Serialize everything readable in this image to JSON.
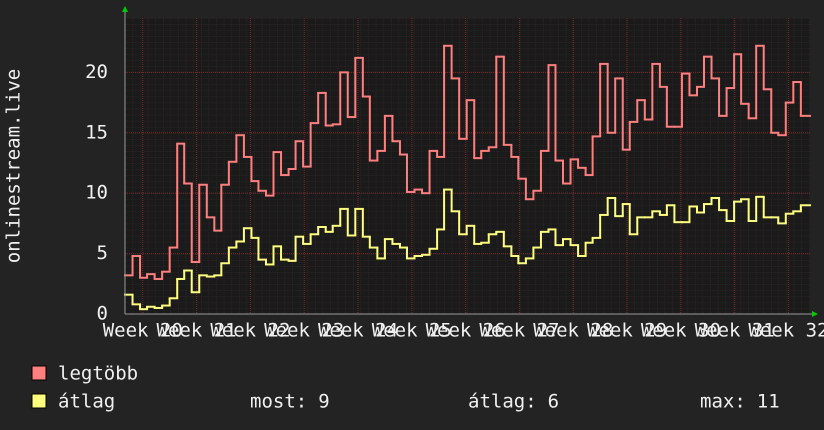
{
  "chart_data": {
    "type": "step",
    "y_label": "onlinestream.live",
    "xlim": [
      19.67,
      32.4
    ],
    "xticks": [
      {
        "value": 20,
        "label": "Week 20"
      },
      {
        "value": 21,
        "label": "Week 21"
      },
      {
        "value": 22,
        "label": "Week 22"
      },
      {
        "value": 23,
        "label": "Week 23"
      },
      {
        "value": 24,
        "label": "Week 24"
      },
      {
        "value": 25,
        "label": "Week 25"
      },
      {
        "value": 26,
        "label": "Week 26"
      },
      {
        "value": 27,
        "label": "Week 27"
      },
      {
        "value": 28,
        "label": "Week 28"
      },
      {
        "value": 29,
        "label": "Week 29"
      },
      {
        "value": 30,
        "label": "Week 30"
      },
      {
        "value": 31,
        "label": "Week 31"
      },
      {
        "value": 32,
        "label": "Week 32"
      }
    ],
    "ylim": [
      0,
      24.5
    ],
    "yticks": [
      0,
      5,
      10,
      15,
      20
    ],
    "grid": true,
    "x": [
      19.67,
      19.81,
      19.95,
      20.08,
      20.22,
      20.36,
      20.5,
      20.64,
      20.77,
      20.91,
      21.05,
      21.19,
      21.33,
      21.46,
      21.6,
      21.74,
      21.88,
      22.02,
      22.15,
      22.29,
      22.43,
      22.57,
      22.71,
      22.84,
      22.98,
      23.12,
      23.26,
      23.4,
      23.53,
      23.67,
      23.81,
      23.95,
      24.09,
      24.22,
      24.36,
      24.5,
      24.64,
      24.78,
      24.91,
      25.05,
      25.19,
      25.33,
      25.47,
      25.6,
      25.74,
      25.88,
      26.02,
      26.16,
      26.29,
      26.43,
      26.57,
      26.71,
      26.85,
      26.98,
      27.12,
      27.26,
      27.4,
      27.54,
      27.67,
      27.81,
      27.95,
      28.09,
      28.23,
      28.36,
      28.5,
      28.64,
      28.78,
      28.92,
      29.05,
      29.19,
      29.33,
      29.47,
      29.61,
      29.74,
      29.88,
      30.02,
      30.16,
      30.3,
      30.43,
      30.57,
      30.71,
      30.85,
      30.99,
      31.12,
      31.26,
      31.4,
      31.54,
      31.68,
      31.81,
      31.95,
      32.09,
      32.23
    ],
    "series": [
      {
        "name": "legtöbb",
        "color": "#ff7f7f",
        "values": [
          3.2,
          4.8,
          3.0,
          3.3,
          2.9,
          3.5,
          5.5,
          14.1,
          10.8,
          4.3,
          10.7,
          8.0,
          6.9,
          10.7,
          12.6,
          14.8,
          13.0,
          11.0,
          10.2,
          9.8,
          13.4,
          11.5,
          12.0,
          14.3,
          12.2,
          15.8,
          18.3,
          15.6,
          15.7,
          20.0,
          16.3,
          21.2,
          18.0,
          12.7,
          13.5,
          16.4,
          14.3,
          13.2,
          10.1,
          10.3,
          10.0,
          13.5,
          13.0,
          22.2,
          19.5,
          14.5,
          17.7,
          12.9,
          13.5,
          13.8,
          21.3,
          14.0,
          13.0,
          11.2,
          9.5,
          10.2,
          13.5,
          20.6,
          12.7,
          10.8,
          12.8,
          12.1,
          11.5,
          14.7,
          20.7,
          15.0,
          19.5,
          13.6,
          15.9,
          17.7,
          16.1,
          20.7,
          18.8,
          15.5,
          15.5,
          19.9,
          18.1,
          18.8,
          21.3,
          19.5,
          16.4,
          18.7,
          21.5,
          17.4,
          16.2,
          22.2,
          18.6,
          15.0,
          14.8,
          17.5,
          19.2,
          16.4
        ]
      },
      {
        "name": "átlag",
        "color": "#ffff7f",
        "values": [
          1.6,
          0.8,
          0.4,
          0.6,
          0.5,
          0.7,
          1.3,
          2.9,
          3.6,
          1.8,
          3.2,
          3.1,
          3.2,
          4.2,
          5.5,
          6.0,
          7.1,
          6.3,
          4.5,
          4.1,
          5.6,
          4.5,
          4.4,
          6.4,
          5.8,
          6.6,
          7.2,
          6.8,
          7.3,
          8.7,
          6.5,
          8.7,
          6.4,
          5.5,
          4.6,
          6.2,
          5.8,
          5.5,
          4.6,
          4.8,
          4.9,
          5.4,
          7.0,
          10.3,
          8.5,
          6.6,
          7.3,
          5.8,
          5.9,
          6.6,
          6.8,
          5.6,
          4.8,
          4.2,
          4.6,
          5.5,
          6.8,
          7.0,
          5.7,
          6.2,
          5.7,
          4.8,
          5.9,
          6.3,
          8.2,
          9.6,
          8.1,
          9.1,
          6.6,
          8.0,
          8.0,
          8.5,
          8.2,
          9.0,
          7.6,
          7.6,
          8.9,
          8.4,
          9.1,
          9.6,
          8.6,
          7.7,
          9.3,
          9.5,
          7.7,
          9.7,
          8.0,
          8.0,
          7.5,
          8.3,
          8.5,
          9.0
        ]
      }
    ],
    "stats": [
      {
        "label": "most:",
        "value": 9
      },
      {
        "label": "átlag:",
        "value": 6
      },
      {
        "label": "max:",
        "value": 11
      }
    ]
  }
}
